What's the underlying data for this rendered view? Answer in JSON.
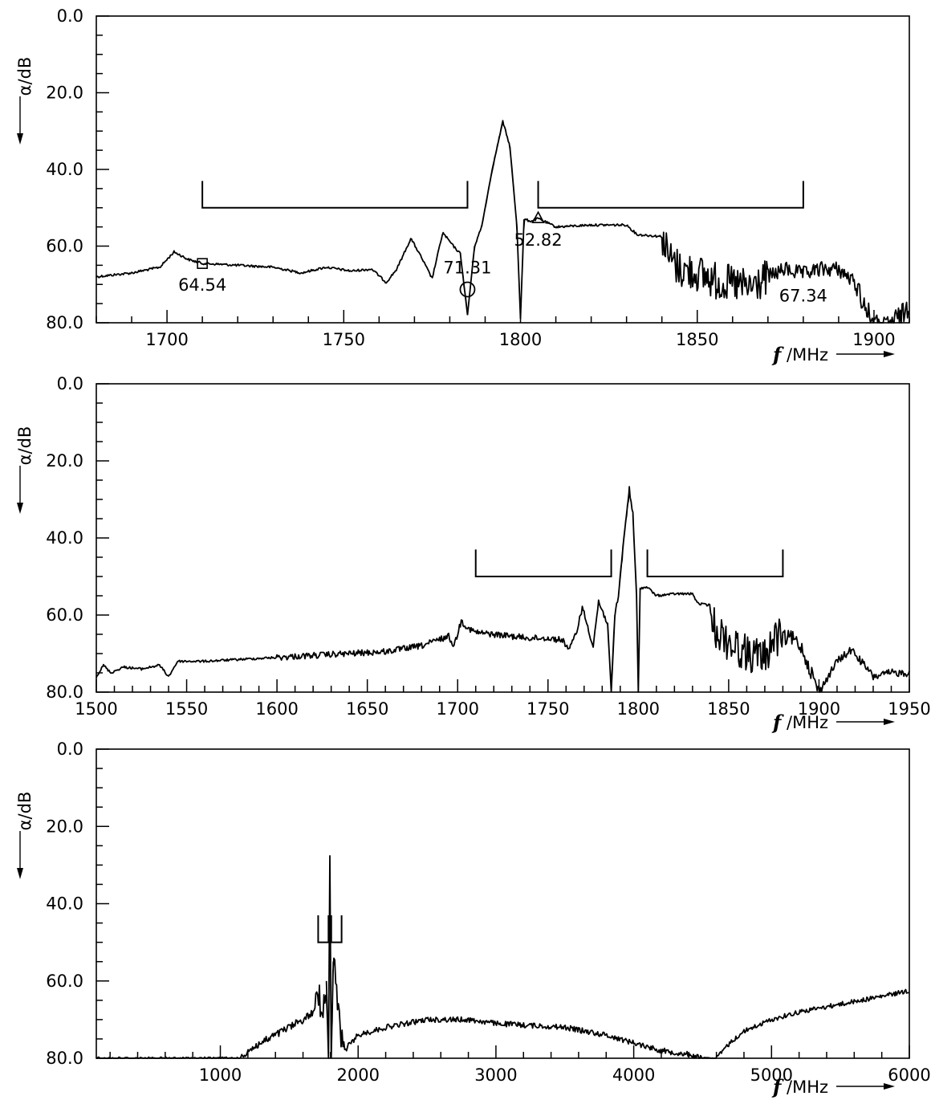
{
  "chart_data": [
    {
      "type": "line",
      "xlabel_symbol": "f",
      "xlabel_unit": "/MHz",
      "ylabel_symbol": "α",
      "ylabel_unit": "/dB",
      "ylabel_text": "α/dB",
      "xlim": [
        1680,
        1910
      ],
      "ylim": [
        0,
        80
      ],
      "y_inverted": true,
      "x_ticks": [
        "1700",
        "1750",
        "1800",
        "1850",
        "1900"
      ],
      "y_ticks": [
        "0.0",
        "20.0",
        "40.0",
        "60.0",
        "80.0"
      ],
      "grid": false,
      "brackets": [
        {
          "x_start": 1710,
          "x_end": 1785,
          "y": 50,
          "y_top": 43
        },
        {
          "x_start": 1805,
          "x_end": 1880,
          "y": 50,
          "y_top": 43
        }
      ],
      "markers": [
        {
          "symbol": "square",
          "x": 1710,
          "y": 64.54,
          "label": "64.54"
        },
        {
          "symbol": "circle",
          "x": 1785,
          "y": 71.31,
          "label": "71.31"
        },
        {
          "symbol": "triangle",
          "x": 1805,
          "y": 52.82,
          "label": "52.82"
        },
        {
          "symbol": "none",
          "x": 1880,
          "y": 67.34,
          "label": "67.34"
        }
      ],
      "series": [
        {
          "points": [
            [
              1680,
              68
            ],
            [
              1690,
              67
            ],
            [
              1698,
              65.5
            ],
            [
              1702,
              61.5
            ],
            [
              1706,
              63.5
            ],
            [
              1710,
              64.5
            ],
            [
              1720,
              65
            ],
            [
              1730,
              65.5
            ],
            [
              1738,
              67
            ],
            [
              1745,
              65.5
            ],
            [
              1752,
              66.5
            ],
            [
              1758,
              66
            ],
            [
              1762,
              69.5
            ],
            [
              1765,
              66
            ],
            [
              1769,
              58
            ],
            [
              1772,
              63
            ],
            [
              1775,
              68.5
            ],
            [
              1778,
              56.5
            ],
            [
              1781,
              60
            ],
            [
              1783,
              62
            ],
            [
              1785,
              78
            ],
            [
              1787,
              60
            ],
            [
              1789,
              55
            ],
            [
              1792,
              40
            ],
            [
              1795,
              27.5
            ],
            [
              1797,
              34
            ],
            [
              1799,
              55
            ],
            [
              1800,
              79
            ],
            [
              1801,
              53
            ],
            [
              1803,
              53.5
            ],
            [
              1805,
              52.8
            ],
            [
              1810,
              55
            ],
            [
              1820,
              54.5
            ],
            [
              1830,
              54.5
            ],
            [
              1833,
              57
            ],
            [
              1840,
              57.5
            ],
            [
              1842,
              63
            ],
            [
              1845,
              66
            ],
            [
              1850,
              67
            ],
            [
              1855,
              69
            ],
            [
              1860,
              70
            ],
            [
              1865,
              71
            ],
            [
              1870,
              68
            ],
            [
              1875,
              66
            ],
            [
              1880,
              67.3
            ],
            [
              1885,
              66
            ],
            [
              1890,
              66
            ],
            [
              1895,
              70
            ],
            [
              1898,
              77
            ],
            [
              1900,
              80
            ],
            [
              1902,
              82
            ],
            [
              1905,
              80
            ],
            [
              1908,
              78
            ],
            [
              1910,
              75
            ]
          ],
          "noise": [
            [
              1840,
              1870,
              5
            ],
            [
              1870,
              1895,
              2
            ],
            [
              1895,
              1910,
              3
            ]
          ]
        }
      ]
    },
    {
      "type": "line",
      "xlabel_symbol": "f",
      "xlabel_unit": "/MHz",
      "ylabel_text": "α/dB",
      "xlim": [
        1500,
        1950
      ],
      "ylim": [
        0,
        80
      ],
      "y_inverted": true,
      "x_ticks": [
        "1500",
        "1550",
        "1600",
        "1650",
        "1700",
        "1750",
        "1800",
        "1850",
        "1900",
        "1950"
      ],
      "y_ticks": [
        "0.0",
        "20.0",
        "40.0",
        "60.0",
        "80.0"
      ],
      "grid": false,
      "brackets": [
        {
          "x_start": 1710,
          "x_end": 1785,
          "y": 50,
          "y_top": 43
        },
        {
          "x_start": 1805,
          "x_end": 1880,
          "y": 50,
          "y_top": 43
        }
      ],
      "series": [
        {
          "points": [
            [
              1500,
              76
            ],
            [
              1504,
              73
            ],
            [
              1508,
              75
            ],
            [
              1515,
              73.5
            ],
            [
              1525,
              74
            ],
            [
              1535,
              73
            ],
            [
              1540,
              76
            ],
            [
              1545,
              72
            ],
            [
              1560,
              72
            ],
            [
              1580,
              71.5
            ],
            [
              1600,
              71
            ],
            [
              1620,
              70.5
            ],
            [
              1640,
              70
            ],
            [
              1660,
              69.5
            ],
            [
              1680,
              68
            ],
            [
              1695,
              65.5
            ],
            [
              1698,
              68
            ],
            [
              1702,
              61.5
            ],
            [
              1706,
              63.5
            ],
            [
              1710,
              64.5
            ],
            [
              1720,
              65
            ],
            [
              1730,
              65.5
            ],
            [
              1740,
              66
            ],
            [
              1750,
              66
            ],
            [
              1758,
              66.5
            ],
            [
              1762,
              69
            ],
            [
              1766,
              64
            ],
            [
              1769,
              58
            ],
            [
              1772,
              63
            ],
            [
              1775,
              68
            ],
            [
              1778,
              56.5
            ],
            [
              1781,
              60
            ],
            [
              1783,
              62
            ],
            [
              1785,
              80
            ],
            [
              1787,
              60
            ],
            [
              1789,
              55
            ],
            [
              1792,
              40
            ],
            [
              1795,
              27.5
            ],
            [
              1797,
              34
            ],
            [
              1799,
              55
            ],
            [
              1800,
              80
            ],
            [
              1801,
              53
            ],
            [
              1805,
              52.8
            ],
            [
              1810,
              55
            ],
            [
              1820,
              54.5
            ],
            [
              1830,
              54.5
            ],
            [
              1833,
              57
            ],
            [
              1840,
              57.5
            ],
            [
              1842,
              63
            ],
            [
              1850,
              67
            ],
            [
              1860,
              70
            ],
            [
              1870,
              71
            ],
            [
              1875,
              66
            ],
            [
              1880,
              66
            ],
            [
              1885,
              66
            ],
            [
              1890,
              68
            ],
            [
              1895,
              74
            ],
            [
              1900,
              80
            ],
            [
              1905,
              76
            ],
            [
              1910,
              72
            ],
            [
              1918,
              69
            ],
            [
              1925,
              73
            ],
            [
              1930,
              76
            ],
            [
              1940,
              75
            ],
            [
              1950,
              75
            ]
          ],
          "noise": [
            [
              1600,
              1800,
              0.8
            ],
            [
              1840,
              1880,
              5
            ],
            [
              1880,
              1900,
              2
            ],
            [
              1900,
              1950,
              1
            ]
          ]
        }
      ]
    },
    {
      "type": "line",
      "xlabel_symbol": "f",
      "xlabel_unit": "/MHz",
      "ylabel_text": "α/dB",
      "xlim": [
        100,
        6000
      ],
      "ylim": [
        0,
        80
      ],
      "y_inverted": true,
      "x_ticks": [
        "1000",
        "2000",
        "3000",
        "4000",
        "5000",
        "6000"
      ],
      "y_ticks": [
        "0.0",
        "20.0",
        "40.0",
        "60.0",
        "80.0"
      ],
      "grid": false,
      "brackets": [
        {
          "x_start": 1710,
          "x_end": 1785,
          "y": 50,
          "y_top": 43
        },
        {
          "x_start": 1805,
          "x_end": 1880,
          "y": 50,
          "y_top": 43
        }
      ],
      "series": [
        {
          "points": [
            [
              1150,
              80
            ],
            [
              1200,
              78
            ],
            [
              1300,
              76
            ],
            [
              1400,
              74
            ],
            [
              1500,
              72
            ],
            [
              1600,
              70
            ],
            [
              1680,
              68
            ],
            [
              1700,
              62
            ],
            [
              1720,
              65
            ],
            [
              1750,
              67
            ],
            [
              1770,
              60
            ],
            [
              1785,
              80
            ],
            [
              1795,
              27.5
            ],
            [
              1805,
              80
            ],
            [
              1820,
              55
            ],
            [
              1840,
              60
            ],
            [
              1860,
              70
            ],
            [
              1880,
              76
            ],
            [
              1900,
              78
            ],
            [
              1950,
              76
            ],
            [
              2000,
              74
            ],
            [
              2200,
              72
            ],
            [
              2500,
              70
            ],
            [
              2800,
              70
            ],
            [
              3000,
              71
            ],
            [
              3500,
              72
            ],
            [
              3800,
              74
            ],
            [
              4000,
              76
            ],
            [
              4200,
              78
            ],
            [
              4400,
              79
            ],
            [
              4500,
              80
            ],
            [
              4600,
              80
            ],
            [
              4700,
              76
            ],
            [
              4800,
              73
            ],
            [
              5000,
              70
            ],
            [
              5200,
              68
            ],
            [
              5500,
              66
            ],
            [
              5800,
              64
            ],
            [
              6000,
              62.5
            ]
          ],
          "noise": [
            [
              1150,
              1700,
              1
            ],
            [
              1700,
              1900,
              4
            ],
            [
              1900,
              4500,
              0.7
            ],
            [
              4600,
              6000,
              0.6
            ]
          ]
        }
      ]
    }
  ]
}
